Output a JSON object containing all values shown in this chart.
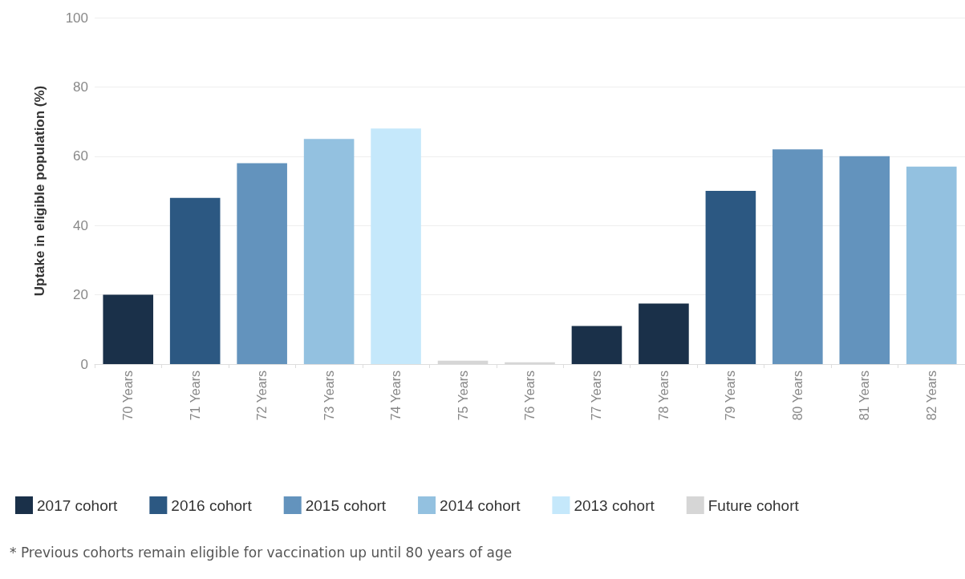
{
  "chart_data": {
    "type": "bar",
    "ylabel": "Uptake in eligible population (%)",
    "categories": [
      "70 Years",
      "71 Years",
      "72 Years",
      "73 Years",
      "74 Years",
      "75 Years",
      "76 Years",
      "77 Years",
      "78 Years",
      "79 Years",
      "80 Years",
      "81 Years",
      "82 Years"
    ],
    "stacked": true,
    "series": [
      {
        "name": "2017 cohort",
        "color": "#1a3049",
        "values": [
          20,
          null,
          null,
          null,
          null,
          null,
          null,
          11,
          17.5,
          null,
          null,
          null,
          null
        ]
      },
      {
        "name": "2016 cohort",
        "color": "#2c5882",
        "values": [
          null,
          48,
          null,
          null,
          null,
          null,
          null,
          null,
          null,
          50,
          null,
          null,
          null
        ]
      },
      {
        "name": "2015 cohort",
        "color": "#6393bd",
        "values": [
          null,
          null,
          58,
          null,
          null,
          null,
          null,
          null,
          null,
          null,
          62,
          60,
          null
        ]
      },
      {
        "name": "2014 cohort",
        "color": "#93c1e0",
        "values": [
          null,
          null,
          null,
          65,
          null,
          null,
          null,
          null,
          null,
          null,
          null,
          null,
          57
        ]
      },
      {
        "name": "2013 cohort",
        "color": "#c5e8fb",
        "values": [
          null,
          null,
          null,
          null,
          68,
          null,
          null,
          null,
          null,
          null,
          null,
          null,
          null
        ]
      },
      {
        "name": "Future cohort",
        "color": "#d6d6d6",
        "values": [
          null,
          null,
          null,
          null,
          null,
          1,
          0.5,
          null,
          null,
          null,
          null,
          null,
          null
        ]
      }
    ],
    "ylim": [
      0,
      100
    ],
    "yticks": [
      0,
      20,
      40,
      60,
      80,
      100
    ],
    "grid": "y",
    "legend": "bottom left",
    "annotations": [
      "* Previous cohorts remain eligible for vaccination up until 80 years of age"
    ]
  }
}
